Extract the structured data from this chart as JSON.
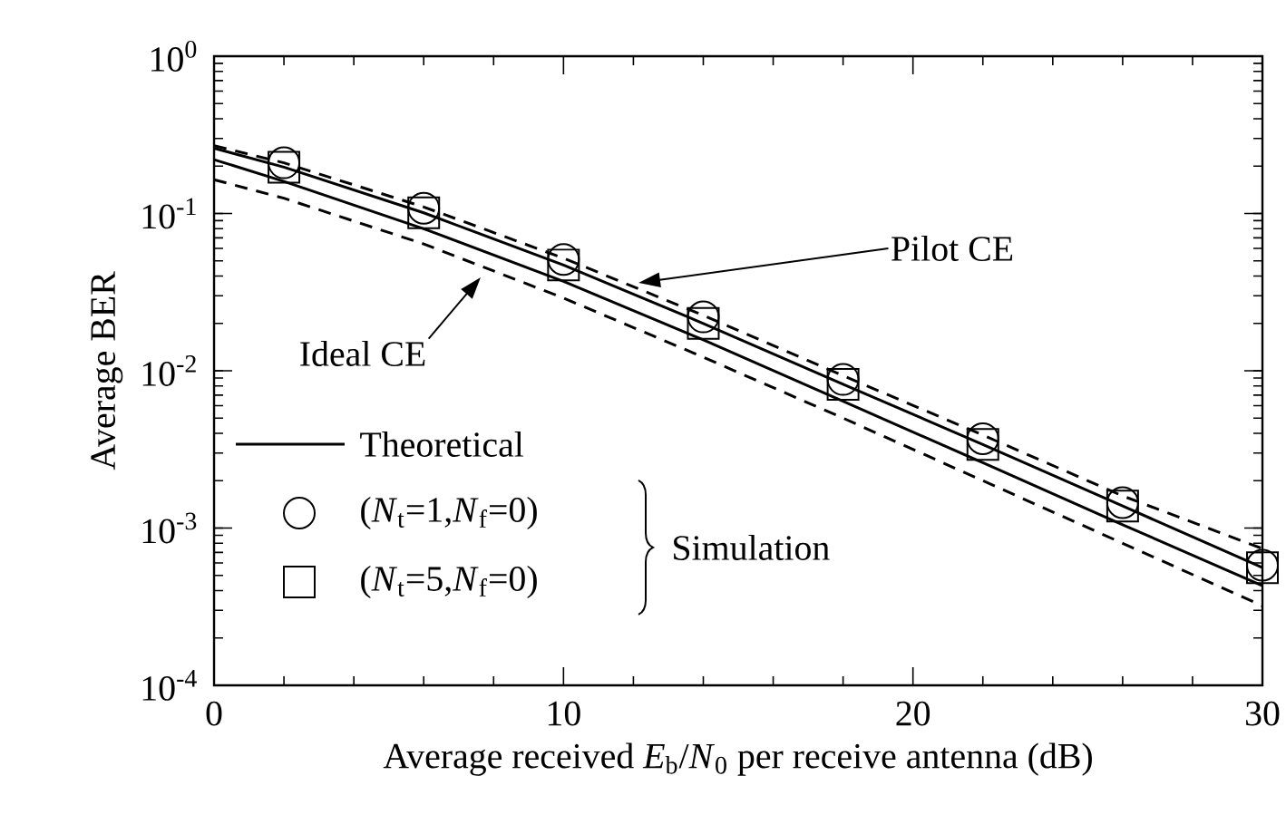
{
  "chart_data": {
    "type": "line",
    "xlabel": "Average received *E*$_{b}$/*N*$_{0}$ per receive antenna (dB)",
    "ylabel": "Average BER",
    "log": "y",
    "xlim": [
      0,
      30
    ],
    "ylim": [
      0.0001,
      1
    ],
    "xticks": [
      0,
      10,
      20,
      30
    ],
    "yticks": [
      {
        "value": 0.0001,
        "label": "10$^{-4}$"
      },
      {
        "value": 0.001,
        "label": "10$^{-3}$"
      },
      {
        "value": 0.01,
        "label": "10$^{-2}$"
      },
      {
        "value": 0.1,
        "label": "10$^{-1}$"
      },
      {
        "value": 1,
        "label": "10$^{0}$"
      }
    ],
    "x": [
      0,
      2,
      6,
      10,
      14,
      18,
      22,
      26,
      30
    ],
    "series": [
      {
        "name": "Theoretical",
        "line_style": "solid",
        "marker": "none",
        "color": "#000000",
        "values": [
          0.26,
          0.197,
          0.101,
          0.047,
          0.02,
          0.0082,
          0.0034,
          0.00138,
          0.00056
        ]
      },
      {
        "line_style": "solid",
        "marker": "none",
        "color": "#000000",
        "values": [
          0.22,
          0.16,
          0.08,
          0.037,
          0.0157,
          0.0064,
          0.0026,
          0.00105,
          0.00043
        ]
      },
      {
        "line_style": "dashed",
        "marker": "none",
        "color": "#000000",
        "values": [
          0.27,
          0.21,
          0.11,
          0.052,
          0.0225,
          0.0093,
          0.0039,
          0.0016,
          0.00074
        ]
      },
      {
        "line_style": "dashed",
        "marker": "none",
        "color": "#000000",
        "values": [
          0.164,
          0.125,
          0.064,
          0.029,
          0.0122,
          0.005,
          0.002,
          0.0008,
          0.00032
        ]
      },
      {
        "name": "(*N*$_{t}$=1,*N*$_{f}$=0)",
        "type": "scatter",
        "marker": "circle",
        "color": "#000000",
        "x": [
          2,
          6,
          10,
          14,
          18,
          22,
          26,
          30
        ],
        "values": [
          0.21,
          0.108,
          0.051,
          0.022,
          0.0088,
          0.0037,
          0.00145,
          0.00058
        ]
      },
      {
        "name": "(*N*$_{t}$=5,*N*$_{f}$=0)",
        "type": "scatter",
        "marker": "square",
        "color": "#000000",
        "x": [
          2,
          6,
          10,
          14,
          18,
          22,
          26,
          30
        ],
        "values": [
          0.197,
          0.101,
          0.047,
          0.02,
          0.0082,
          0.0034,
          0.00138,
          0.00056
        ]
      }
    ],
    "annotations": [
      "Pilot CE",
      "Ideal CE",
      "Simulation"
    ],
    "legend": "bottom left",
    "grid": false
  }
}
